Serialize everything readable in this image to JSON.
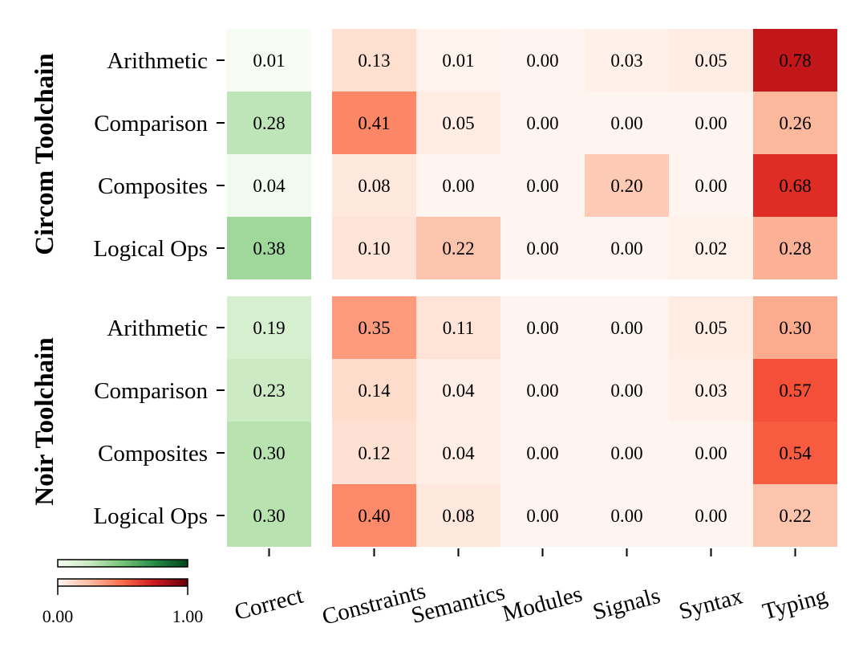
{
  "chart_data": {
    "type": "heatmap",
    "columns": [
      "Correct",
      "Constraints",
      "Semantics",
      "Modules",
      "Signals",
      "Syntax",
      "Typing"
    ],
    "row_labels": [
      "Arithmetic",
      "Comparison",
      "Composites",
      "Logical Ops"
    ],
    "groups": [
      {
        "name": "Circom Toolchain",
        "values": [
          [
            0.01,
            0.13,
            0.01,
            0.0,
            0.03,
            0.05,
            0.78
          ],
          [
            0.28,
            0.41,
            0.05,
            0.0,
            0.0,
            0.0,
            0.26
          ],
          [
            0.04,
            0.08,
            0.0,
            0.0,
            0.2,
            0.0,
            0.68
          ],
          [
            0.38,
            0.1,
            0.22,
            0.0,
            0.0,
            0.02,
            0.28
          ]
        ]
      },
      {
        "name": "Noir Toolchain",
        "values": [
          [
            0.19,
            0.35,
            0.11,
            0.0,
            0.0,
            0.05,
            0.3
          ],
          [
            0.23,
            0.14,
            0.04,
            0.0,
            0.0,
            0.03,
            0.57
          ],
          [
            0.3,
            0.12,
            0.04,
            0.0,
            0.0,
            0.0,
            0.54
          ],
          [
            0.3,
            0.4,
            0.08,
            0.0,
            0.0,
            0.0,
            0.22
          ]
        ]
      }
    ],
    "colormaps": {
      "correct": "Greens",
      "errors": "Reds"
    },
    "colorbar": {
      "min": 0,
      "max": 1,
      "min_label": "0.00",
      "max_label": "1.00"
    }
  }
}
